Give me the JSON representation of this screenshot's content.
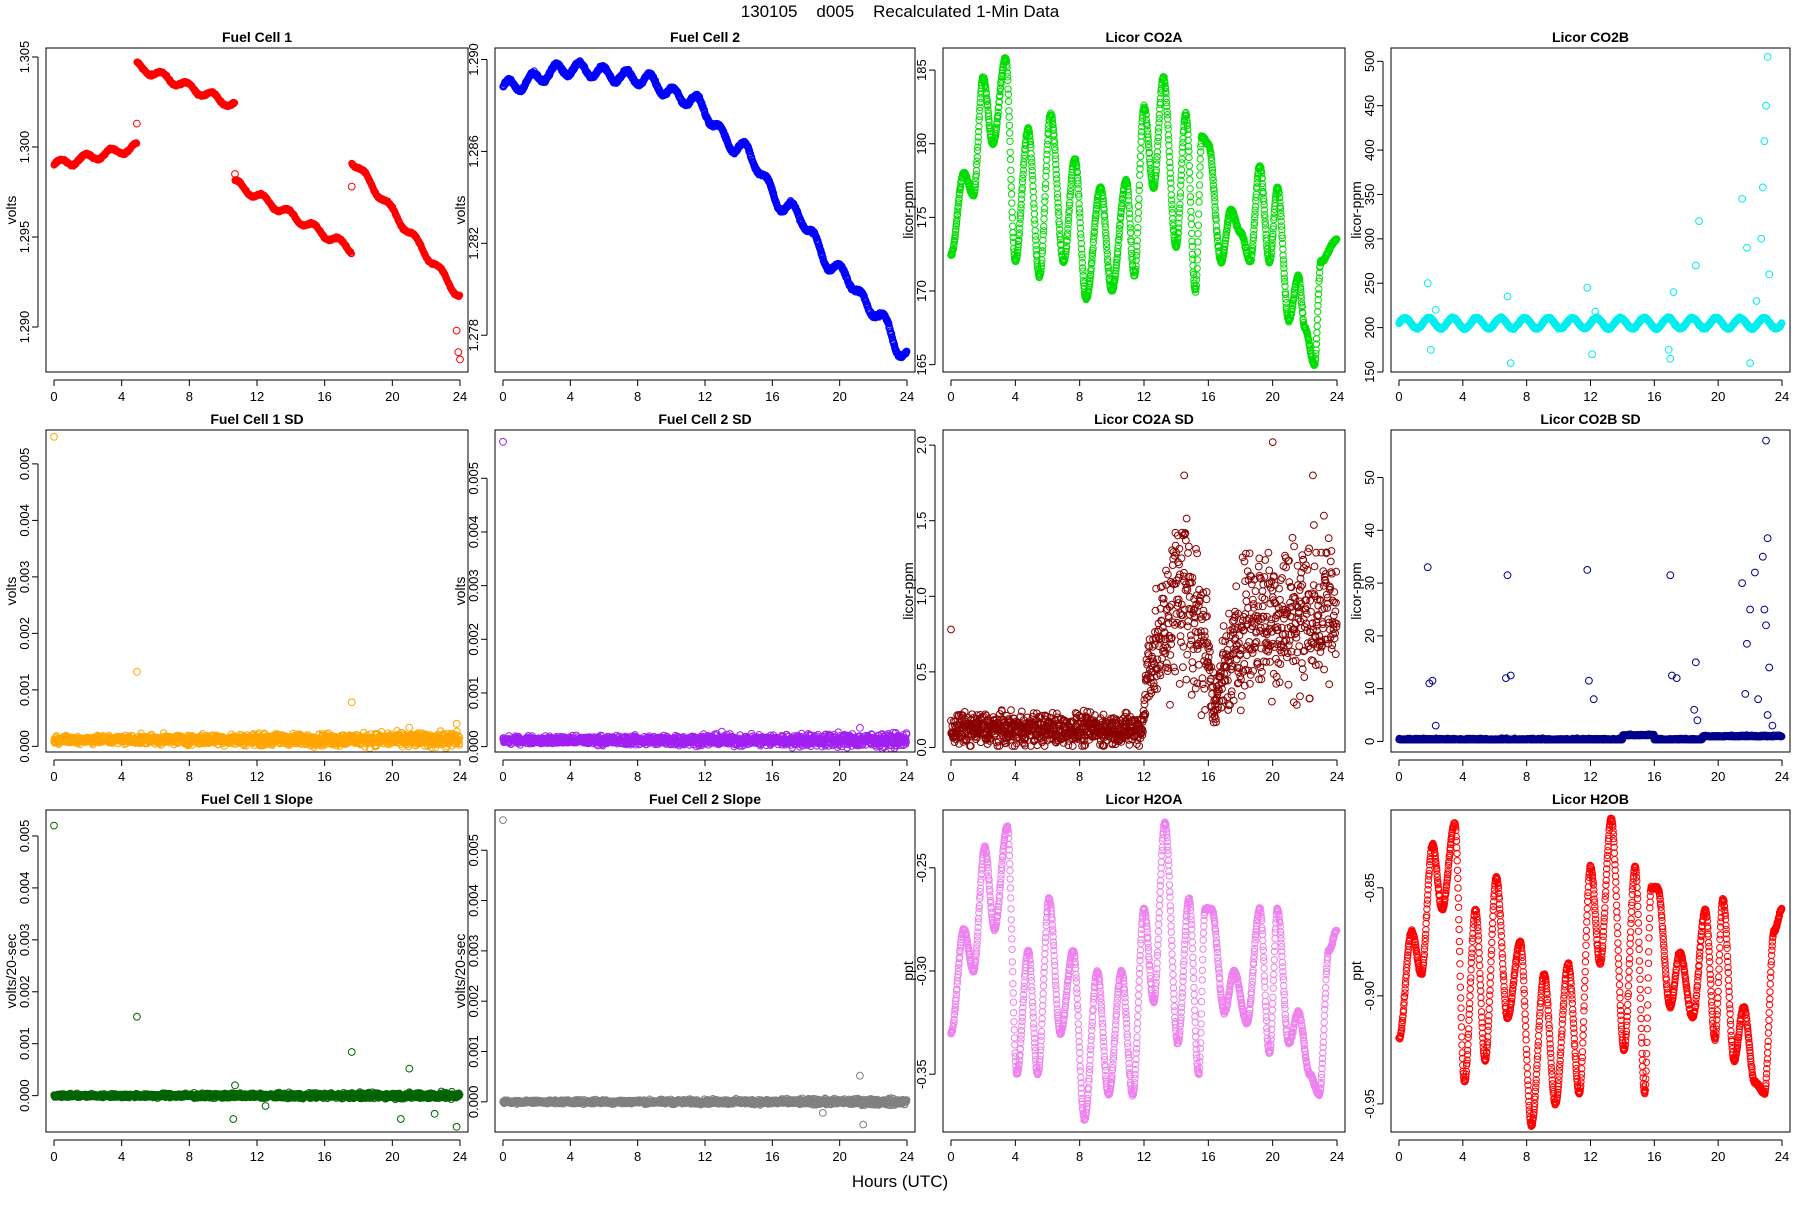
{
  "figure": {
    "title": "130105    d005    Recalculated 1-Min Data",
    "xlabel": "Hours (UTC)"
  },
  "chart_data": [
    {
      "type": "scatter",
      "title": "Fuel Cell 1",
      "ylabel": "volts",
      "color": "#ff0000",
      "xlim": [
        0,
        24
      ],
      "ylim": [
        1.2875,
        1.3055
      ],
      "xticks": [
        0,
        4,
        8,
        12,
        16,
        20,
        24
      ],
      "yticks": [
        "1.290",
        "1.295",
        "1.300",
        "1.305"
      ],
      "segments": [
        [
          0,
          4.9,
          1.299,
          1.3
        ],
        [
          4.9,
          10.7,
          1.3045,
          1.3023
        ],
        [
          10.7,
          17.6,
          1.298,
          1.2943
        ],
        [
          17.6,
          24,
          1.2993,
          1.2917
        ]
      ],
      "outliers": [
        [
          4.9,
          1.3013
        ],
        [
          10.7,
          1.2985
        ],
        [
          17.6,
          1.2978
        ],
        [
          23.8,
          1.2898
        ],
        [
          23.9,
          1.2886
        ],
        [
          24,
          1.2882
        ]
      ]
    },
    {
      "type": "scatter",
      "title": "Fuel Cell 2",
      "ylabel": "volts",
      "color": "#0000ff",
      "xlim": [
        0,
        24
      ],
      "ylim": [
        1.2764,
        1.2905
      ],
      "xticks": [
        0,
        4,
        8,
        12,
        16,
        20,
        24
      ],
      "yticks": [
        "1.278",
        "1.282",
        "1.286",
        "1.290"
      ],
      "curve": [
        [
          0,
          1.2888
        ],
        [
          4,
          1.2896
        ],
        [
          8,
          1.2892
        ],
        [
          11,
          1.2883
        ],
        [
          14,
          1.2862
        ],
        [
          17,
          1.2835
        ],
        [
          20,
          1.2808
        ],
        [
          22,
          1.2791
        ],
        [
          24,
          1.2771
        ]
      ]
    },
    {
      "type": "scatter",
      "title": "Licor CO2A",
      "ylabel": "licor-ppm",
      "color": "#00dd00",
      "xlim": [
        0,
        24
      ],
      "ylim": [
        164.5,
        186.5
      ],
      "xticks": [
        0,
        4,
        8,
        12,
        16,
        20,
        24
      ],
      "yticks": [
        "165",
        "170",
        "175",
        "180",
        "185"
      ],
      "curve": [
        [
          0,
          172.5
        ],
        [
          0.8,
          178
        ],
        [
          1.4,
          176.5
        ],
        [
          2,
          184.5
        ],
        [
          2.6,
          180
        ],
        [
          3.4,
          185.8
        ],
        [
          4,
          172
        ],
        [
          4.8,
          181
        ],
        [
          5.5,
          171
        ],
        [
          6.2,
          182
        ],
        [
          7,
          172
        ],
        [
          7.7,
          179
        ],
        [
          8.4,
          169.5
        ],
        [
          9.3,
          177
        ],
        [
          10,
          170
        ],
        [
          10.9,
          177.5
        ],
        [
          11.4,
          171
        ],
        [
          12,
          182.5
        ],
        [
          12.6,
          177
        ],
        [
          13.2,
          184.5
        ],
        [
          14,
          173
        ],
        [
          14.6,
          182
        ],
        [
          15.2,
          170
        ],
        [
          15.6,
          180.5
        ],
        [
          16,
          180
        ],
        [
          16.8,
          172
        ],
        [
          17.4,
          175.5
        ],
        [
          18,
          174
        ],
        [
          18.6,
          172
        ],
        [
          19.2,
          178.5
        ],
        [
          19.8,
          172
        ],
        [
          20.3,
          177
        ],
        [
          21,
          168
        ],
        [
          21.6,
          171
        ],
        [
          22,
          167.5
        ],
        [
          22.6,
          165
        ],
        [
          23,
          172
        ],
        [
          24,
          173.5
        ]
      ]
    },
    {
      "type": "scatter",
      "title": "Licor CO2B",
      "ylabel": "licor-ppm",
      "color": "#00eeee",
      "xlim": [
        0,
        24
      ],
      "ylim": [
        150,
        515
      ],
      "xticks": [
        0,
        4,
        8,
        12,
        16,
        20,
        24
      ],
      "yticks": [
        "150",
        "200",
        "250",
        "300",
        "350",
        "400",
        "450",
        "500"
      ],
      "baseline": 205,
      "amp": 6,
      "outliers": [
        [
          1.8,
          250
        ],
        [
          2.0,
          175
        ],
        [
          2.3,
          220
        ],
        [
          6.8,
          235
        ],
        [
          7.0,
          160
        ],
        [
          11.8,
          245
        ],
        [
          12.1,
          170
        ],
        [
          12.3,
          218
        ],
        [
          16.9,
          175
        ],
        [
          17.2,
          240
        ],
        [
          17.0,
          165
        ],
        [
          18.6,
          270
        ],
        [
          18.8,
          320
        ],
        [
          21.5,
          345
        ],
        [
          21.8,
          290
        ],
        [
          22.0,
          160
        ],
        [
          22.4,
          230
        ],
        [
          22.7,
          300
        ],
        [
          22.8,
          358
        ],
        [
          22.9,
          410
        ],
        [
          23.0,
          450
        ],
        [
          23.1,
          505
        ],
        [
          23.2,
          260
        ]
      ]
    },
    {
      "type": "scatter",
      "title": "Fuel Cell 1 SD",
      "ylabel": "volts",
      "color": "#ffa500",
      "xlim": [
        0,
        24
      ],
      "ylim": [
        -0.0001,
        0.0056
      ],
      "xticks": [
        0,
        4,
        8,
        12,
        16,
        20,
        24
      ],
      "yticks": [
        "0.000",
        "0.001",
        "0.002",
        "0.003",
        "0.004",
        "0.005"
      ],
      "baseline": 0.00012,
      "noise": 8e-05,
      "outliers": [
        [
          0,
          0.00548
        ],
        [
          4.9,
          0.00132
        ],
        [
          17.6,
          0.00078
        ],
        [
          21,
          0.00033
        ],
        [
          23.8,
          0.0004
        ]
      ]
    },
    {
      "type": "scatter",
      "title": "Fuel Cell 2 SD",
      "ylabel": "volts",
      "color": "#a020f0",
      "xlim": [
        0,
        24
      ],
      "ylim": [
        -0.0001,
        0.0059
      ],
      "xticks": [
        0,
        4,
        8,
        12,
        16,
        20,
        24
      ],
      "yticks": [
        "0.000",
        "0.001",
        "0.002",
        "0.003",
        "0.004",
        "0.005"
      ],
      "baseline": 0.00012,
      "noise": 8e-05,
      "outliers": [
        [
          0,
          0.00568
        ],
        [
          13,
          0.00028
        ],
        [
          21.2,
          0.00035
        ]
      ]
    },
    {
      "type": "scatter",
      "title": "Licor CO2A SD",
      "ylabel": "licor-ppm",
      "color": "#8b0000",
      "xlim": [
        0,
        24
      ],
      "ylim": [
        -0.03,
        2.1
      ],
      "xticks": [
        0,
        4,
        8,
        12,
        16,
        20,
        24
      ],
      "yticks": [
        "0.0",
        "0.5",
        "1.0",
        "1.5",
        "2.0"
      ],
      "profile": [
        [
          0,
          0.12
        ],
        [
          11.8,
          0.12
        ],
        [
          12.4,
          0.6
        ],
        [
          14.5,
          1.05
        ],
        [
          15.8,
          0.7
        ],
        [
          16.4,
          0.3
        ],
        [
          17.2,
          0.55
        ],
        [
          18.5,
          0.85
        ],
        [
          24,
          0.9
        ]
      ],
      "outliers": [
        [
          0,
          0.78
        ],
        [
          14.5,
          1.8
        ],
        [
          20,
          2.02
        ],
        [
          22.5,
          1.8
        ]
      ]
    },
    {
      "type": "scatter",
      "title": "Licor CO2B SD",
      "ylabel": "licor-ppm",
      "color": "#00008b",
      "xlim": [
        0,
        24
      ],
      "ylim": [
        -2,
        59
      ],
      "xticks": [
        0,
        4,
        8,
        12,
        16,
        20,
        24
      ],
      "yticks": [
        "0",
        "10",
        "20",
        "30",
        "40",
        "50"
      ],
      "baseline": 0.3,
      "outliers": [
        [
          1.8,
          33
        ],
        [
          1.9,
          11
        ],
        [
          2.1,
          11.5
        ],
        [
          2.3,
          3
        ],
        [
          6.8,
          31.5
        ],
        [
          6.7,
          12
        ],
        [
          7.0,
          12.5
        ],
        [
          11.8,
          32.5
        ],
        [
          11.9,
          11.5
        ],
        [
          12.2,
          8
        ],
        [
          17.0,
          31.5
        ],
        [
          17.1,
          12.5
        ],
        [
          17.4,
          12
        ],
        [
          18.6,
          15
        ],
        [
          18.5,
          6
        ],
        [
          18.7,
          4
        ],
        [
          21.5,
          30
        ],
        [
          21.8,
          18.5
        ],
        [
          21.7,
          9
        ],
        [
          22.0,
          25
        ],
        [
          22.3,
          32
        ],
        [
          22.5,
          8
        ],
        [
          22.8,
          35
        ],
        [
          23.0,
          57
        ],
        [
          23.1,
          38.5
        ],
        [
          23.0,
          22
        ],
        [
          22.9,
          25
        ],
        [
          23.2,
          14
        ],
        [
          23.1,
          5
        ],
        [
          23.4,
          3
        ]
      ]
    },
    {
      "type": "scatter",
      "title": "Fuel Cell 1 Slope",
      "ylabel": "volts/20-sec",
      "color": "#006400",
      "xlim": [
        0,
        24
      ],
      "ylim": [
        -0.0007,
        0.0055
      ],
      "xticks": [
        0,
        4,
        8,
        12,
        16,
        20,
        24
      ],
      "yticks": [
        "0.000",
        "0.001",
        "0.002",
        "0.003",
        "0.004",
        "0.005"
      ],
      "baseline": 0,
      "noise": 4e-05,
      "outliers": [
        [
          0,
          0.0052
        ],
        [
          4.9,
          0.00152
        ],
        [
          17.6,
          0.00084
        ],
        [
          21,
          0.00052
        ],
        [
          20.5,
          -0.00045
        ],
        [
          23.8,
          -0.0006
        ],
        [
          10.6,
          -0.00045
        ],
        [
          10.7,
          0.0002
        ],
        [
          12.5,
          -0.0002
        ],
        [
          22.5,
          -0.00035
        ]
      ]
    },
    {
      "type": "scatter",
      "title": "Fuel Cell 2 Slope",
      "ylabel": "volts/20-sec",
      "color": "#808080",
      "xlim": [
        0,
        24
      ],
      "ylim": [
        -0.0006,
        0.0058
      ],
      "xticks": [
        0,
        4,
        8,
        12,
        16,
        20,
        24
      ],
      "yticks": [
        "0.000",
        "0.001",
        "0.002",
        "0.003",
        "0.004",
        "0.005"
      ],
      "baseline": 0,
      "noise": 4e-05,
      "outliers": [
        [
          0,
          0.0056
        ],
        [
          21.2,
          0.00052
        ],
        [
          21.4,
          -0.00045
        ],
        [
          19,
          -0.00022
        ]
      ]
    },
    {
      "type": "scatter",
      "title": "Licor H2OA",
      "ylabel": "ppt",
      "color": "#ee82ee",
      "xlim": [
        0,
        24
      ],
      "ylim": [
        -0.378,
        -0.222
      ],
      "xticks": [
        0,
        4,
        8,
        12,
        16,
        20,
        24
      ],
      "yticks": [
        "-0.35",
        "-0.30",
        "-0.25"
      ],
      "curve": [
        [
          0,
          -0.33
        ],
        [
          0.8,
          -0.28
        ],
        [
          1.4,
          -0.3
        ],
        [
          2.1,
          -0.24
        ],
        [
          2.7,
          -0.28
        ],
        [
          3.5,
          -0.23
        ],
        [
          4.1,
          -0.35
        ],
        [
          4.8,
          -0.29
        ],
        [
          5.4,
          -0.35
        ],
        [
          6.1,
          -0.265
        ],
        [
          6.8,
          -0.33
        ],
        [
          7.6,
          -0.29
        ],
        [
          8.3,
          -0.372
        ],
        [
          9.1,
          -0.3
        ],
        [
          9.8,
          -0.36
        ],
        [
          10.6,
          -0.3
        ],
        [
          11.3,
          -0.36
        ],
        [
          12,
          -0.27
        ],
        [
          12.6,
          -0.315
        ],
        [
          13.3,
          -0.228
        ],
        [
          14.1,
          -0.335
        ],
        [
          14.8,
          -0.265
        ],
        [
          15.4,
          -0.35
        ],
        [
          15.8,
          -0.27
        ],
        [
          16.2,
          -0.27
        ],
        [
          17,
          -0.32
        ],
        [
          17.6,
          -0.3
        ],
        [
          18.4,
          -0.325
        ],
        [
          19.2,
          -0.27
        ],
        [
          19.8,
          -0.34
        ],
        [
          20.3,
          -0.27
        ],
        [
          21,
          -0.335
        ],
        [
          21.6,
          -0.32
        ],
        [
          22.3,
          -0.35
        ],
        [
          22.9,
          -0.36
        ],
        [
          23.5,
          -0.29
        ],
        [
          24,
          -0.28
        ]
      ]
    },
    {
      "type": "scatter",
      "title": "Licor H2OB",
      "ylabel": "ppt",
      "color": "#ff0000",
      "xlim": [
        0,
        24
      ],
      "ylim": [
        -0.963,
        -0.814
      ],
      "xticks": [
        0,
        4,
        8,
        12,
        16,
        20,
        24
      ],
      "yticks": [
        "-0.95",
        "-0.90",
        "-0.85"
      ],
      "curve": [
        [
          0,
          -0.92
        ],
        [
          0.8,
          -0.87
        ],
        [
          1.4,
          -0.89
        ],
        [
          2.1,
          -0.83
        ],
        [
          2.7,
          -0.86
        ],
        [
          3.5,
          -0.82
        ],
        [
          4.1,
          -0.94
        ],
        [
          4.8,
          -0.86
        ],
        [
          5.4,
          -0.93
        ],
        [
          6.1,
          -0.845
        ],
        [
          6.8,
          -0.91
        ],
        [
          7.6,
          -0.875
        ],
        [
          8.3,
          -0.96
        ],
        [
          9.1,
          -0.89
        ],
        [
          9.8,
          -0.95
        ],
        [
          10.6,
          -0.885
        ],
        [
          11.3,
          -0.945
        ],
        [
          12,
          -0.84
        ],
        [
          12.6,
          -0.885
        ],
        [
          13.3,
          -0.818
        ],
        [
          14.1,
          -0.925
        ],
        [
          14.8,
          -0.84
        ],
        [
          15.4,
          -0.945
        ],
        [
          15.8,
          -0.85
        ],
        [
          16.2,
          -0.85
        ],
        [
          17,
          -0.905
        ],
        [
          17.6,
          -0.88
        ],
        [
          18.4,
          -0.91
        ],
        [
          19.2,
          -0.86
        ],
        [
          19.8,
          -0.92
        ],
        [
          20.3,
          -0.855
        ],
        [
          21,
          -0.93
        ],
        [
          21.6,
          -0.905
        ],
        [
          22.3,
          -0.94
        ],
        [
          22.9,
          -0.945
        ],
        [
          23.5,
          -0.87
        ],
        [
          24,
          -0.86
        ]
      ]
    }
  ]
}
